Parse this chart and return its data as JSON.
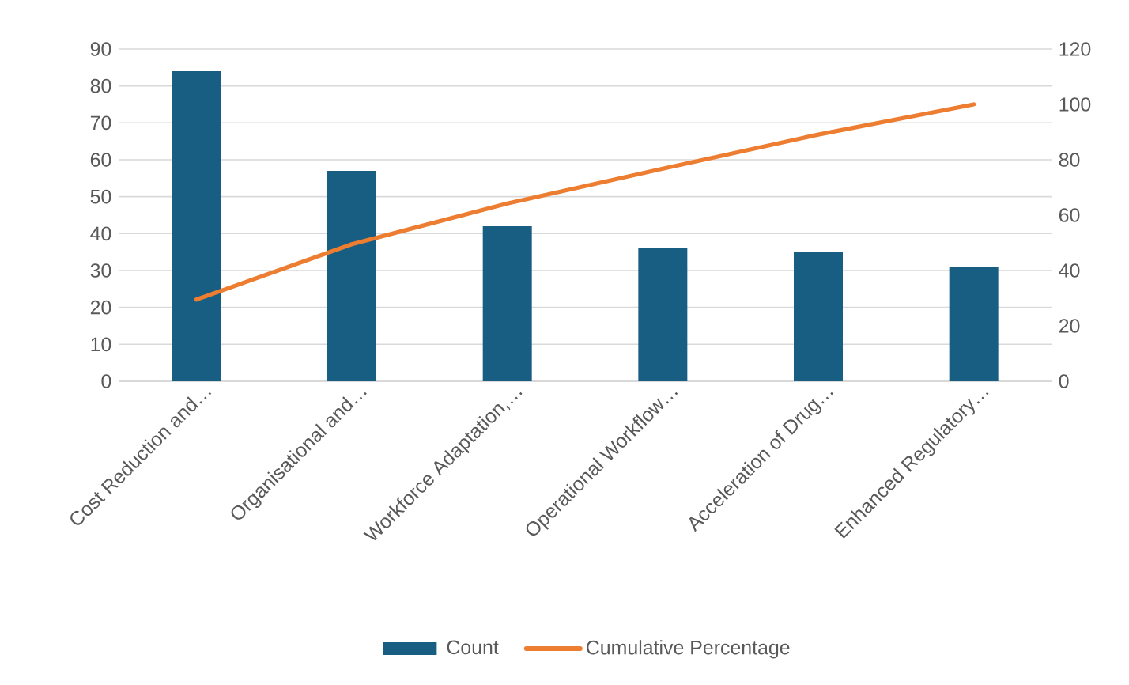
{
  "chart_data": {
    "type": "bar",
    "categories": [
      "Cost Reduction and…",
      "Organisational and…",
      "Workforce Adaptation,…",
      "Operational Workflow…",
      "Acceleration of Drug…",
      "Enhanced Regulatory…"
    ],
    "series": [
      {
        "name": "Count",
        "color": "#175e82",
        "values": [
          84,
          57,
          42,
          36,
          35,
          31
        ]
      },
      {
        "name": "Cumulative Percentage",
        "type": "line",
        "axis": "y2",
        "color": "#ed7d31",
        "values": [
          29.5,
          49.5,
          64.2,
          76.8,
          89.1,
          100
        ]
      }
    ],
    "ylim": [
      0,
      90
    ],
    "yticks": [
      0,
      10,
      20,
      30,
      40,
      50,
      60,
      70,
      80,
      90
    ],
    "y2lim": [
      0,
      120
    ],
    "y2ticks": [
      0,
      20,
      40,
      60,
      80,
      100,
      120
    ],
    "grid": "y",
    "legend": "bottom",
    "marker": "none",
    "line_style": "solid"
  }
}
